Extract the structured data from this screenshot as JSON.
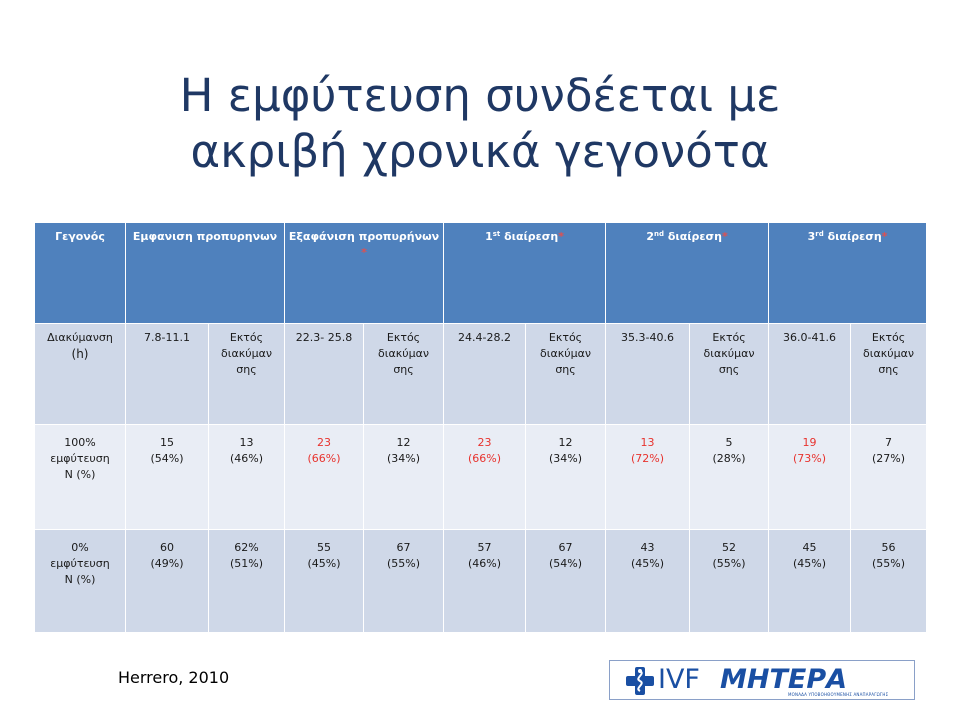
{
  "title": {
    "line1": "Η εμφύτευση συνδέεται με",
    "line2": "ακριβή χρονικά γεγονότα"
  },
  "table": {
    "headers": [
      {
        "text": "Γεγονός",
        "sup": "",
        "rest": "",
        "star": ""
      },
      {
        "text": "Εμφανιση προπυρηνων",
        "sup": "",
        "rest": "",
        "star": ""
      },
      {
        "text": "Εξαφάνιση προπυρήνων",
        "sup": "",
        "rest": "",
        "star": "*"
      },
      {
        "text": "1",
        "sup": "st",
        "rest": " διαίρεση",
        "star": "*"
      },
      {
        "text": "2",
        "sup": "nd",
        "rest": " διαίρεση",
        "star": "*"
      },
      {
        "text": "3",
        "sup": "rd",
        "rest": " διαίρεση",
        "star": "*"
      }
    ],
    "duration_row": {
      "label1": "Διακύμανση",
      "label2": "(h)",
      "cells": [
        "7.8-11.1",
        "Εκτός διακύμαν σης",
        "22.3- 25.8",
        "Εκτός διακύμαν σης",
        "24.4-28.2",
        "Εκτός διακύμαν σης",
        "35.3-40.6",
        "Εκτός διακύμαν σης",
        "36.0-41.6",
        "Εκτός διακύμαν σης"
      ]
    },
    "implant100_row": {
      "label1": "100%",
      "label2": "εμφύτευση",
      "label3": "N (%)",
      "cells": [
        {
          "n": "15",
          "pct": "(54%)"
        },
        {
          "n": "13",
          "pct": "(46%)"
        },
        {
          "n": "23",
          "pct": "(66%)"
        },
        {
          "n": "12",
          "pct": "(34%)"
        },
        {
          "n": "23",
          "pct": "(66%)"
        },
        {
          "n": "12",
          "pct": "(34%)"
        },
        {
          "n": "13",
          "pct": "(72%)"
        },
        {
          "n": "5",
          "pct": "(28%)"
        },
        {
          "n": "19",
          "pct": "(73%)"
        },
        {
          "n": "7",
          "pct": "(27%)"
        }
      ]
    },
    "implant0_row": {
      "label1": "0%",
      "label2": "εμφύτευση",
      "label3": "N (%)",
      "cells": [
        {
          "n": "60",
          "pct": "(49%)"
        },
        {
          "n": "62%",
          "pct": "(51%)"
        },
        {
          "n": "55",
          "pct": "(45%)"
        },
        {
          "n": "67",
          "pct": "(55%)"
        },
        {
          "n": "57",
          "pct": "(46%)"
        },
        {
          "n": "67",
          "pct": "(54%)"
        },
        {
          "n": "43",
          "pct": "(45%)"
        },
        {
          "n": "52",
          "pct": "(55%)"
        },
        {
          "n": "45",
          "pct": "(45%)"
        },
        {
          "n": "56",
          "pct": "(55%)"
        }
      ]
    }
  },
  "citation": "Herrero, 2010",
  "logo": {
    "icon": "medical-cross-icon",
    "ivf": "IVF",
    "name": "ΜΗΤΕΡΑ",
    "subtitle": "ΜΟΝΑΔΑ ΥΠΟΒΟΗΘΟΥΜΕΝΗΣ ΑΝΑΠΑΡΑΓΩΓΗΣ",
    "color": "#1a4fa3"
  },
  "colors": {
    "title": "#1f3864",
    "header_bg": "#4f81bd",
    "row_dark": "#cfd8e8",
    "row_light": "#e9edf5",
    "highlight": "#e8332e"
  }
}
